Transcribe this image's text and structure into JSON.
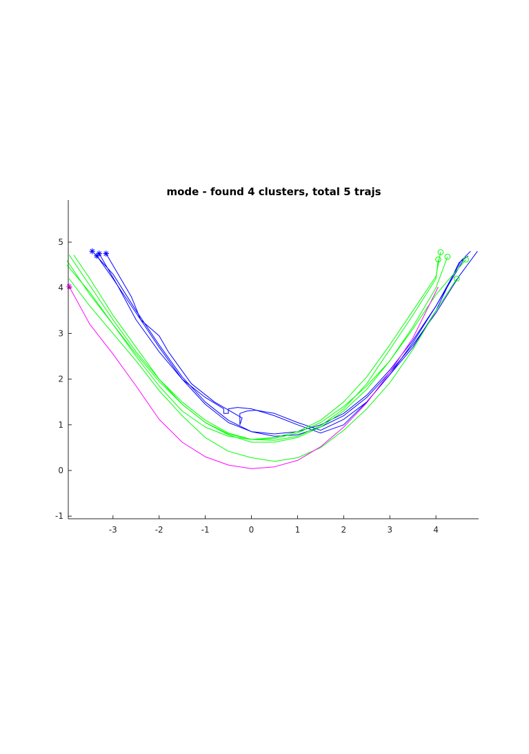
{
  "chart_data": {
    "type": "line",
    "title": "mode - found 4 clusters, total 5 trajs",
    "xlabel": "",
    "ylabel": "",
    "xlim": [
      -4,
      4.9
    ],
    "ylim": [
      -1.05,
      5.9
    ],
    "xticks": [
      -3,
      -2,
      -1,
      0,
      1,
      2,
      3,
      4
    ],
    "yticks": [
      -1,
      0,
      1,
      2,
      3,
      4,
      5
    ],
    "grid": false,
    "legend": "none",
    "colors": {
      "blue": "#0000ff",
      "green": "#00ff00",
      "magenta": "#ff00ff",
      "axis": "#262626"
    },
    "series": [
      {
        "color": "blue",
        "marker_start": "asterisk",
        "points": [
          [
            -3.3,
            4.75
          ],
          [
            -2.9,
            4.05
          ],
          [
            -2.5,
            3.3
          ],
          [
            -2.0,
            2.6
          ],
          [
            -1.5,
            2.0
          ],
          [
            -1.0,
            1.6
          ],
          [
            -0.6,
            1.35
          ],
          [
            -0.6,
            1.25
          ],
          [
            -0.5,
            1.25
          ],
          [
            -0.5,
            1.35
          ],
          [
            -0.3,
            1.38
          ],
          [
            0.0,
            1.35
          ],
          [
            0.5,
            1.2
          ],
          [
            1.0,
            1.0
          ],
          [
            1.5,
            0.82
          ],
          [
            2.0,
            1.0
          ],
          [
            2.5,
            1.5
          ],
          [
            3.0,
            2.1
          ],
          [
            3.5,
            2.8
          ],
          [
            4.0,
            3.6
          ],
          [
            4.55,
            4.6
          ],
          [
            4.75,
            4.8
          ]
        ]
      },
      {
        "color": "blue",
        "marker_start": "asterisk",
        "points": [
          [
            -3.15,
            4.75
          ],
          [
            -2.6,
            3.8
          ],
          [
            -2.4,
            3.3
          ],
          [
            -2.0,
            2.95
          ],
          [
            -1.8,
            2.6
          ],
          [
            -1.3,
            1.9
          ],
          [
            -0.8,
            1.5
          ],
          [
            -0.2,
            1.15
          ],
          [
            -0.25,
            1.0
          ],
          [
            -0.25,
            1.25
          ],
          [
            -0.1,
            1.3
          ],
          [
            0.1,
            1.32
          ],
          [
            0.5,
            1.25
          ],
          [
            1.0,
            1.05
          ],
          [
            1.5,
            0.88
          ],
          [
            2.0,
            1.12
          ],
          [
            2.5,
            1.5
          ],
          [
            3.0,
            2.1
          ],
          [
            3.5,
            2.7
          ],
          [
            4.0,
            3.5
          ],
          [
            4.5,
            4.55
          ],
          [
            4.7,
            4.7
          ]
        ]
      },
      {
        "color": "blue",
        "marker_start": "asterisk",
        "points": [
          [
            -3.45,
            4.8
          ],
          [
            -3.0,
            4.3
          ],
          [
            -2.5,
            3.5
          ],
          [
            -2.0,
            2.75
          ],
          [
            -1.5,
            2.05
          ],
          [
            -1.0,
            1.5
          ],
          [
            -0.5,
            1.1
          ],
          [
            0.0,
            0.85
          ],
          [
            0.5,
            0.75
          ],
          [
            1.0,
            0.78
          ],
          [
            1.5,
            0.95
          ],
          [
            2.0,
            1.2
          ],
          [
            2.5,
            1.6
          ],
          [
            3.0,
            2.15
          ],
          [
            3.5,
            2.75
          ],
          [
            4.0,
            3.45
          ],
          [
            4.5,
            4.25
          ],
          [
            4.9,
            4.8
          ]
        ]
      },
      {
        "color": "blue",
        "marker_start": "asterisk",
        "points": [
          [
            -3.35,
            4.7
          ],
          [
            -3.0,
            4.2
          ],
          [
            -2.5,
            3.45
          ],
          [
            -2.0,
            2.7
          ],
          [
            -1.5,
            2.0
          ],
          [
            -1.0,
            1.45
          ],
          [
            -0.5,
            1.05
          ],
          [
            0.0,
            0.85
          ],
          [
            0.5,
            0.8
          ],
          [
            1.0,
            0.85
          ],
          [
            1.5,
            1.0
          ],
          [
            2.0,
            1.25
          ],
          [
            2.5,
            1.65
          ],
          [
            3.0,
            2.2
          ],
          [
            3.5,
            2.85
          ],
          [
            4.0,
            3.6
          ],
          [
            4.6,
            4.62
          ]
        ]
      },
      {
        "color": "green",
        "marker_end": "circle",
        "points": [
          [
            -3.95,
            4.72
          ],
          [
            -3.5,
            4.05
          ],
          [
            -3.0,
            3.3
          ],
          [
            -2.5,
            2.6
          ],
          [
            -2.0,
            2.0
          ],
          [
            -1.5,
            1.5
          ],
          [
            -1.0,
            1.1
          ],
          [
            -0.5,
            0.82
          ],
          [
            0.0,
            0.68
          ],
          [
            0.5,
            0.66
          ],
          [
            1.0,
            0.75
          ],
          [
            1.5,
            0.98
          ],
          [
            2.0,
            1.35
          ],
          [
            2.5,
            1.9
          ],
          [
            3.0,
            2.65
          ],
          [
            3.5,
            3.4
          ],
          [
            4.0,
            4.2
          ],
          [
            4.05,
            4.62
          ]
        ]
      },
      {
        "color": "green",
        "marker_end": "circle",
        "points": [
          [
            -3.85,
            4.72
          ],
          [
            -3.5,
            4.2
          ],
          [
            -3.0,
            3.4
          ],
          [
            -2.5,
            2.7
          ],
          [
            -2.0,
            2.0
          ],
          [
            -1.5,
            1.45
          ],
          [
            -1.0,
            1.05
          ],
          [
            -0.5,
            0.8
          ],
          [
            0.0,
            0.68
          ],
          [
            0.5,
            0.72
          ],
          [
            1.0,
            0.85
          ],
          [
            1.5,
            1.1
          ],
          [
            2.0,
            1.5
          ],
          [
            2.5,
            2.05
          ],
          [
            3.0,
            2.75
          ],
          [
            3.5,
            3.5
          ],
          [
            4.0,
            4.25
          ],
          [
            4.1,
            4.78
          ]
        ]
      },
      {
        "color": "green",
        "marker_end": "circle",
        "points": [
          [
            -4.0,
            4.6
          ],
          [
            -3.5,
            3.85
          ],
          [
            -3.0,
            3.2
          ],
          [
            -2.5,
            2.55
          ],
          [
            -2.0,
            1.95
          ],
          [
            -1.5,
            1.45
          ],
          [
            -1.0,
            1.05
          ],
          [
            -0.5,
            0.78
          ],
          [
            0.0,
            0.62
          ],
          [
            0.5,
            0.62
          ],
          [
            1.0,
            0.72
          ],
          [
            1.5,
            0.95
          ],
          [
            2.0,
            1.3
          ],
          [
            2.5,
            1.78
          ],
          [
            3.0,
            2.4
          ],
          [
            3.5,
            3.15
          ],
          [
            4.0,
            4.0
          ],
          [
            4.25,
            4.68
          ]
        ]
      },
      {
        "color": "green",
        "marker_end": "circle",
        "points": [
          [
            -3.95,
            4.2
          ],
          [
            -3.5,
            3.6
          ],
          [
            -3.0,
            3.0
          ],
          [
            -2.5,
            2.4
          ],
          [
            -2.0,
            1.75
          ],
          [
            -1.5,
            1.2
          ],
          [
            -1.0,
            0.72
          ],
          [
            -0.5,
            0.42
          ],
          [
            0.0,
            0.28
          ],
          [
            0.5,
            0.2
          ],
          [
            1.0,
            0.28
          ],
          [
            1.5,
            0.5
          ],
          [
            2.0,
            0.88
          ],
          [
            2.5,
            1.35
          ],
          [
            3.0,
            1.92
          ],
          [
            3.5,
            2.65
          ],
          [
            4.0,
            3.5
          ],
          [
            4.45,
            4.2
          ]
        ]
      },
      {
        "color": "green",
        "marker_end": "circle",
        "points": [
          [
            -4.0,
            4.5
          ],
          [
            -3.5,
            3.9
          ],
          [
            -3.0,
            3.2
          ],
          [
            -2.5,
            2.5
          ],
          [
            -2.0,
            1.85
          ],
          [
            -1.5,
            1.3
          ],
          [
            -1.0,
            0.95
          ],
          [
            -0.5,
            0.75
          ],
          [
            0.0,
            0.68
          ],
          [
            0.5,
            0.7
          ],
          [
            1.0,
            0.82
          ],
          [
            1.5,
            1.05
          ],
          [
            2.0,
            1.4
          ],
          [
            2.5,
            1.85
          ],
          [
            3.0,
            2.4
          ],
          [
            3.5,
            3.1
          ],
          [
            4.0,
            3.85
          ],
          [
            4.65,
            4.62
          ]
        ]
      },
      {
        "color": "magenta",
        "marker_start": "asterisk",
        "points": [
          [
            -3.95,
            4.03
          ],
          [
            -3.5,
            3.2
          ],
          [
            -3.0,
            2.55
          ],
          [
            -2.5,
            1.85
          ],
          [
            -2.0,
            1.12
          ],
          [
            -1.5,
            0.62
          ],
          [
            -1.0,
            0.3
          ],
          [
            -0.5,
            0.12
          ],
          [
            0.0,
            0.04
          ],
          [
            0.5,
            0.08
          ],
          [
            1.0,
            0.22
          ],
          [
            1.5,
            0.52
          ],
          [
            2.0,
            0.95
          ],
          [
            2.5,
            1.48
          ],
          [
            3.0,
            2.15
          ],
          [
            3.5,
            2.9
          ],
          [
            4.05,
            4.02
          ]
        ]
      }
    ]
  }
}
